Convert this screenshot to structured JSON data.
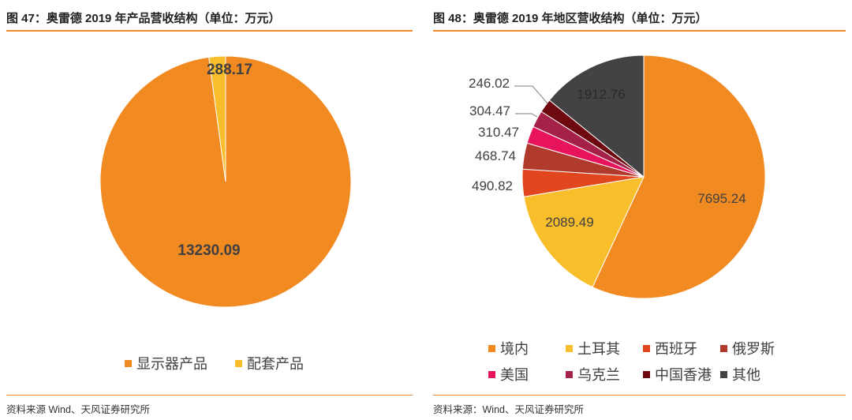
{
  "left": {
    "title": "图 47：奥雷德 2019 年产品营收结构（单位：万元）",
    "source": "资料来源 Wind、天风证券研究所",
    "chart_data": {
      "type": "pie",
      "title": "奥雷德 2019 年产品营收结构（单位：万元）",
      "categories": [
        "显示器产品",
        "配套产品"
      ],
      "values": [
        13230.09,
        288.17
      ],
      "labels": [
        "13230.09",
        "288.17"
      ],
      "colors": [
        "#f28a22",
        "#f9be2b"
      ],
      "legend_position": "bottom"
    }
  },
  "right": {
    "title": "图 48：奥雷德 2019 年地区营收结构（单位：万元）",
    "source": "资料来源：Wind、天风证券研究所",
    "chart_data": {
      "type": "pie",
      "title": "奥雷德 2019 年地区营收结构（单位：万元）",
      "categories": [
        "境内",
        "土耳其",
        "西班牙",
        "俄罗斯",
        "美国",
        "乌克兰",
        "中国香港",
        "其他"
      ],
      "values": [
        7695.24,
        2089.49,
        490.82,
        468.74,
        310.47,
        304.47,
        246.02,
        1912.76
      ],
      "labels": [
        "7695.24",
        "2089.49",
        "490.82",
        "468.74",
        "310.47",
        "304.47",
        "246.02",
        "1912.76"
      ],
      "colors": [
        "#f28a22",
        "#f9be2b",
        "#e0471f",
        "#b03a2c",
        "#e8135d",
        "#a62148",
        "#6e0a0f",
        "#434345"
      ],
      "legend_position": "bottom"
    }
  }
}
